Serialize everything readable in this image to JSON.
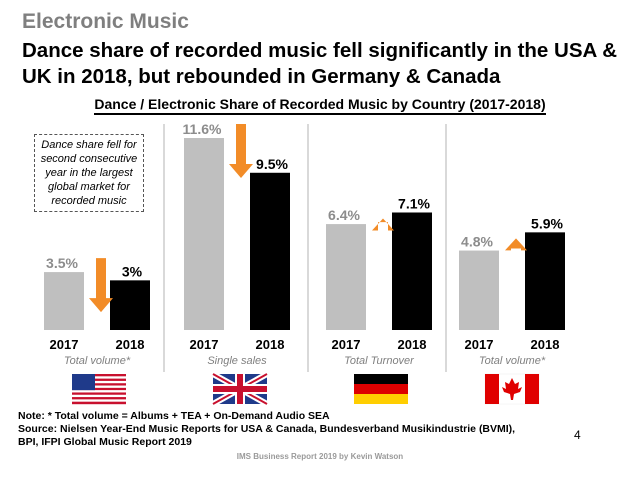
{
  "kicker": "Electronic Music",
  "headline": "Dance share of recorded music fell significantly in the USA & UK in 2018, but rebounded in Germany & Canada",
  "callout": "Dance share fell for second consecutive year in the largest global market for recorded music",
  "note_line": "Note: * Total volume = Albums + TEA + On-Demand Audio SEA",
  "source_line1": "Source: Nielsen Year-End Music Reports for USA & Canada, Bundesverband Musikindustrie (BVMI),",
  "source_line2": "BPI, IFPI Global Music Report 2019",
  "footer": "IMS Business Report 2019 by Kevin Watson",
  "page_number": "4",
  "colors": {
    "bar_2017": "#bfbfbf",
    "bar_2018": "#000000",
    "arrow": "#f28c28",
    "label_2017": "#8c8c8c"
  },
  "chart_data": {
    "type": "bar",
    "title": "Dance / Electronic Share of Recorded Music by Country (2017-2018)",
    "categories": [
      "2017",
      "2018"
    ],
    "ylim": [
      0,
      12
    ],
    "grid": false,
    "groups": [
      {
        "flag": "usa-flag-icon",
        "measure": "Total volume*",
        "values": [
          3.5,
          3.0
        ],
        "labels": [
          "3.5%",
          "3%"
        ],
        "trend": "down"
      },
      {
        "flag": "uk-flag-icon",
        "measure": "Single sales",
        "values": [
          11.6,
          9.5
        ],
        "labels": [
          "11.6%",
          "9.5%"
        ],
        "trend": "down"
      },
      {
        "flag": "germany-flag-icon",
        "measure": "Total Turnover",
        "values": [
          6.4,
          7.1
        ],
        "labels": [
          "6.4%",
          "7.1%"
        ],
        "trend": "up"
      },
      {
        "flag": "canada-flag-icon",
        "measure": "Total volume*",
        "values": [
          4.8,
          5.9
        ],
        "labels": [
          "4.8%",
          "5.9%"
        ],
        "trend": "up"
      }
    ]
  }
}
